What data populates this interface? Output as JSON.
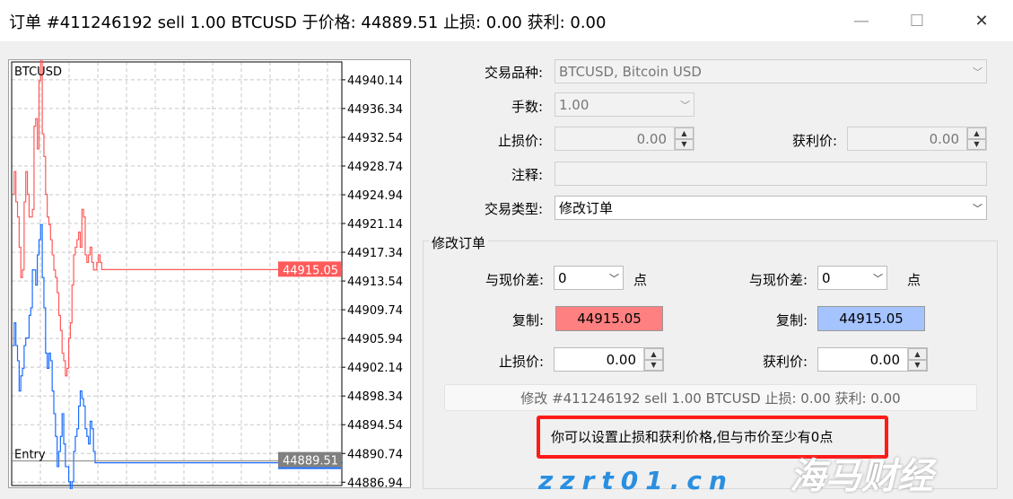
{
  "window": {
    "title": "订单 #411246192 sell 1.00 BTCUSD 于价格: 44889.51 止损: 0.00 获利: 0.00",
    "minimize": "—",
    "maximize": "☐",
    "close": "✕"
  },
  "chart_data": {
    "type": "line",
    "title": "BTCUSD",
    "ylim": [
      44886.5,
      44942.5
    ],
    "grid": true,
    "yticks": [
      "44940.14",
      "44936.34",
      "44932.54",
      "44928.74",
      "44924.94",
      "44921.14",
      "44917.34",
      "44913.54",
      "44909.74",
      "44905.94",
      "44902.14",
      "44898.34",
      "44894.54",
      "44890.74",
      "44886.94"
    ],
    "series": [
      {
        "color": "#ff5a5a",
        "x": [
          0,
          2,
          4,
          6,
          8,
          10,
          12,
          14,
          16,
          18,
          20,
          22,
          24,
          26,
          28,
          30,
          32,
          34,
          36,
          38,
          40,
          42,
          44,
          46,
          48,
          50,
          52,
          54,
          56,
          58,
          60,
          62,
          64,
          66,
          68,
          70,
          72,
          74,
          76,
          78,
          80,
          82,
          84,
          86,
          88,
          90,
          92,
          94,
          96,
          98,
          100,
          102,
          104,
          106,
          108,
          110,
          400
        ],
        "y": [
          44925,
          44928,
          44924,
          44922,
          44918,
          44914,
          44915,
          44924,
          44928,
          44925,
          44922,
          44922,
          44923,
          44934,
          44935,
          44931,
          44940,
          44943,
          44933,
          44930,
          44925,
          44922,
          44921,
          44919,
          44917,
          44915,
          44914,
          44912,
          44909,
          44907,
          44904,
          44903,
          44901,
          44902,
          44906,
          44908,
          44913,
          44917,
          44918,
          44919,
          44920,
          44918,
          44923,
          44922,
          44917,
          44916,
          44917,
          44918,
          44916,
          44915,
          44915,
          44916,
          44917,
          44916,
          44915.05,
          44915.05,
          44915.05
        ]
      },
      {
        "color": "#1a6dff",
        "x": [
          0,
          2,
          4,
          6,
          8,
          10,
          12,
          14,
          16,
          18,
          20,
          22,
          24,
          26,
          28,
          30,
          32,
          34,
          36,
          38,
          40,
          42,
          44,
          46,
          48,
          50,
          52,
          54,
          56,
          58,
          60,
          62,
          64,
          66,
          68,
          70,
          72,
          74,
          76,
          78,
          80,
          82,
          84,
          86,
          88,
          90,
          92,
          94,
          96,
          98,
          100,
          102,
          104,
          106,
          108,
          110,
          400
        ],
        "y": [
          44905,
          44908,
          44905,
          44903,
          44899,
          44901,
          44902,
          44905,
          44906,
          44906,
          44909,
          44910,
          44915,
          44915,
          44913,
          44917,
          44919,
          44921,
          44914,
          44910,
          44904,
          44902,
          44904,
          44903,
          44899,
          44896,
          44893,
          44889,
          44891,
          44893,
          44896,
          44892,
          44889,
          44889,
          44887,
          44886,
          44887,
          44891,
          44893,
          44894,
          44897,
          44899,
          44898,
          44897,
          44894,
          44893,
          44892,
          44895,
          44894,
          44891,
          44889.51,
          44889.51,
          44889.51,
          44889.51,
          44889.51,
          44889.51,
          44889.51
        ]
      }
    ],
    "ask_label": "44915.05",
    "bid_label": "44889.51",
    "entry_label": "Entry",
    "entry_price": 44889.51
  },
  "form": {
    "symbol_label": "交易品种:",
    "symbol": "BTCUSD, Bitcoin USD",
    "volume_label": "手数:",
    "volume": "1.00",
    "sl_label": "止损价:",
    "sl": "0.00",
    "tp_label": "获利价:",
    "tp": "0.00",
    "comment_label": "注释:",
    "comment": "",
    "type_label": "交易类型:",
    "type": "修改订单"
  },
  "modify": {
    "group_title": "修改订单",
    "diff_label": "与现价差:",
    "diff_left": "0",
    "diff_right": "0",
    "points": "点",
    "copy_label": "复制:",
    "copy_left": "44915.05",
    "copy_right": "44915.05",
    "sl_label": "止损价:",
    "sl": "0.00",
    "tp_label": "获利价:",
    "tp": "0.00",
    "button": "修改 #411246192 sell 1.00 BTCUSD 止损: 0.00 获利: 0.00",
    "message": "你可以设置止损和获利价格,但与市价至少有0点",
    "colors": {
      "copy_left": "#ff8080",
      "copy_right": "#a5c3ff"
    }
  },
  "watermark": {
    "brand": "海马财经",
    "url": "zzrt01.cn"
  }
}
